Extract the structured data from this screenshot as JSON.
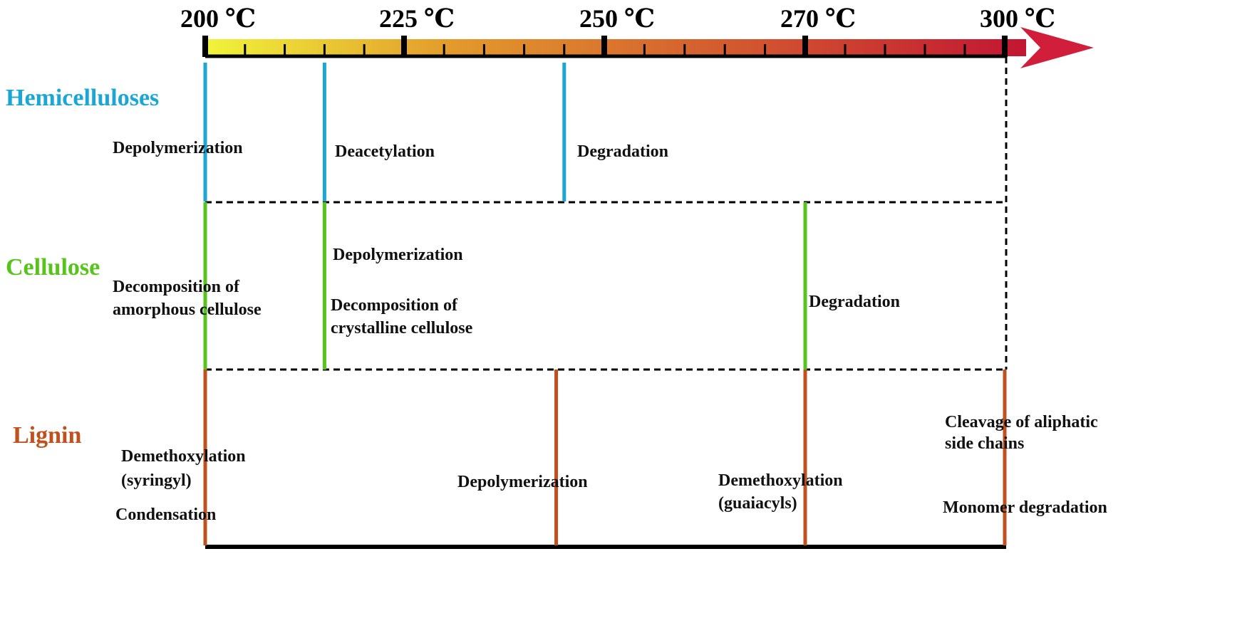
{
  "colors": {
    "hemicelluloses": "#1aa7d6",
    "cellulose": "#56c41a",
    "lignin": "#c0501c",
    "gradient_start": "#f0f43a",
    "gradient_mid": "#e39a2c",
    "gradient_end": "#c21632"
  },
  "temperature_axis": {
    "ticks": [
      {
        "label": "200 ℃",
        "value": 200
      },
      {
        "label": "225 ℃",
        "value": 225
      },
      {
        "label": "250 ℃",
        "value": 250
      },
      {
        "label": "270 ℃",
        "value": 270
      },
      {
        "label": "300 ℃",
        "value": 300
      }
    ]
  },
  "rows": [
    {
      "name": "Hemicelluloses",
      "markers": [
        200,
        215,
        245
      ],
      "processes": [
        {
          "lines": [
            "Depolymerization"
          ]
        },
        {
          "lines": [
            "Deacetylation"
          ]
        },
        {
          "lines": [
            "Degradation"
          ]
        }
      ]
    },
    {
      "name": "Cellulose",
      "markers": [
        200,
        215,
        270
      ],
      "processes": [
        {
          "lines": [
            "Decomposition of",
            "amorphous cellulose"
          ]
        },
        {
          "lines": [
            "Depolymerization"
          ]
        },
        {
          "lines": [
            "Decomposition of",
            "crystalline cellulose"
          ]
        },
        {
          "lines": [
            "Degradation"
          ]
        }
      ]
    },
    {
      "name": "Lignin",
      "markers": [
        200,
        244,
        270,
        300
      ],
      "processes": [
        {
          "lines": [
            "Demethoxylation",
            "(syringyl)"
          ]
        },
        {
          "lines": [
            "Condensation"
          ]
        },
        {
          "lines": [
            "Depolymerization"
          ]
        },
        {
          "lines": [
            "Demethoxylation",
            "(guaiacyls)"
          ]
        },
        {
          "lines": [
            "Cleavage of aliphatic",
            "side chains"
          ]
        },
        {
          "lines": [
            "Monomer degradation"
          ]
        }
      ]
    }
  ]
}
